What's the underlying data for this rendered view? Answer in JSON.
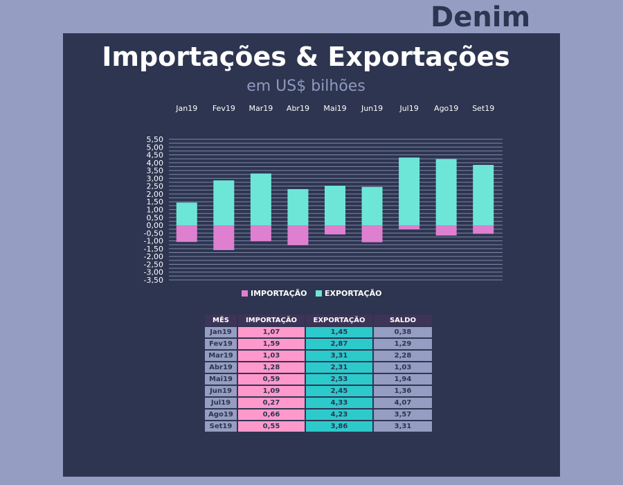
{
  "brand": "Denim",
  "colors": {
    "background": "#959dc2",
    "panel": "#2d3550",
    "importacao": "#de80cf",
    "exportacao": "#6de6d8",
    "table_header": "#3d3458",
    "table_importacao": "#ff99cc",
    "table_exportacao": "#2dcacc",
    "table_mes": "#959dc2"
  },
  "chart_data": {
    "type": "bar",
    "stacked": true,
    "title": "Importações & Exportações",
    "subtitle": "em US$ bilhões",
    "categories": [
      "Jan19",
      "Fev19",
      "Mar19",
      "Abr19",
      "Mai19",
      "Jun19",
      "Jul19",
      "Ago19",
      "Set19"
    ],
    "series": [
      {
        "name": "IMPORTAÇÃO",
        "values": [
          -1.07,
          -1.59,
          -1.03,
          -1.28,
          -0.59,
          -1.09,
          -0.27,
          -0.66,
          -0.55
        ]
      },
      {
        "name": "EXPORTAÇÃO",
        "values": [
          1.45,
          2.87,
          3.31,
          2.31,
          2.53,
          2.45,
          4.33,
          4.23,
          3.86
        ]
      }
    ],
    "ylim": [
      -3.5,
      5.5
    ],
    "ytick_step": 0.25,
    "yticks": [
      "5,50",
      "5,25",
      "5,00",
      "4,75",
      "4,50",
      "4,25",
      "4,00",
      "3,75",
      "3,50",
      "3,25",
      "3,00",
      "2,75",
      "2,50",
      "2,25",
      "2,00",
      "1,75",
      "1,50",
      "1,25",
      "1,00",
      "0,75",
      "0,50",
      "0,25",
      "0,00",
      "-0,25",
      "-0,50",
      "-0,75",
      "-1,00",
      "-1,25",
      "-1,50",
      "-1,75",
      "-2,00",
      "-2,25",
      "-2,50",
      "-2,75",
      "-3,00",
      "-3,25",
      "-3,50"
    ],
    "ytick_labels_shown": [
      "5,50",
      "5,00",
      "4,50",
      "4,00",
      "3,50",
      "3,00",
      "2,50",
      "2,00",
      "1,50",
      "1,00",
      "0,50",
      "0,00",
      "-0,50",
      "-1,00",
      "-1,50",
      "-2,00",
      "-2,50",
      "-3,00",
      "-3,50"
    ],
    "grid": true,
    "category_labels_position": "top",
    "legend_position": "bottom"
  },
  "table": {
    "headers": [
      "MÊS",
      "IMPORTAÇÃO",
      "EXPORTAÇÃO",
      "SALDO"
    ],
    "rows": [
      [
        "Jan19",
        "1,07",
        "1,45",
        "0,38"
      ],
      [
        "Fev19",
        "1,59",
        "2,87",
        "1,29"
      ],
      [
        "Mar19",
        "1,03",
        "3,31",
        "2,28"
      ],
      [
        "Abr19",
        "1,28",
        "2,31",
        "1,03"
      ],
      [
        "Mai19",
        "0,59",
        "2,53",
        "1,94"
      ],
      [
        "Jun19",
        "1,09",
        "2,45",
        "1,36"
      ],
      [
        "Jul19",
        "0,27",
        "4,33",
        "4,07"
      ],
      [
        "Ago19",
        "0,66",
        "4,23",
        "3,57"
      ],
      [
        "Set19",
        "0,55",
        "3,86",
        "3,31"
      ]
    ]
  }
}
